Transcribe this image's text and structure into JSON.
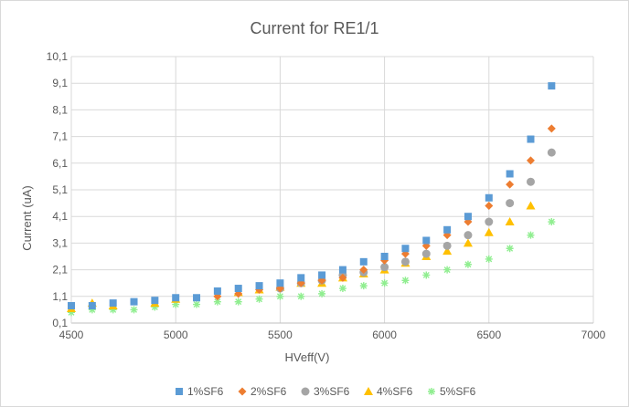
{
  "chart_data": {
    "type": "scatter",
    "title": "Current for RE1/1",
    "xlabel": "HVeff(V)",
    "ylabel": "Current (uA)",
    "xlim": [
      4500,
      7000
    ],
    "ylim": [
      0.1,
      10.1
    ],
    "x_ticks": [
      "4500",
      "5000",
      "5500",
      "6000",
      "6500",
      "7000"
    ],
    "y_ticks": [
      "0,1",
      "1,1",
      "2,1",
      "3,1",
      "4,1",
      "5,1",
      "6,1",
      "7,1",
      "8,1",
      "9,1",
      "10,1"
    ],
    "grid": true,
    "legend_position": "bottom",
    "series": [
      {
        "name": "1%SF6",
        "color": "#5b9bd5",
        "marker": "square",
        "x": [
          4500,
          4600,
          4700,
          4800,
          4900,
          5000,
          5100,
          5200,
          5300,
          5400,
          5500,
          5600,
          5700,
          5800,
          5900,
          6000,
          6100,
          6200,
          6300,
          6400,
          6500,
          6600,
          6700,
          6800
        ],
        "y": [
          0.75,
          0.75,
          0.85,
          0.9,
          0.95,
          1.05,
          1.05,
          1.3,
          1.4,
          1.5,
          1.6,
          1.8,
          1.9,
          2.1,
          2.4,
          2.6,
          2.9,
          3.2,
          3.6,
          4.1,
          4.8,
          5.7,
          7.0,
          9.0
        ]
      },
      {
        "name": "2%SF6",
        "color": "#ed7d31",
        "marker": "diamond",
        "x": [
          5200,
          5300,
          5400,
          5500,
          5600,
          5700,
          5800,
          5900,
          6000,
          6100,
          6200,
          6300,
          6400,
          6500,
          6600,
          6700,
          6800
        ],
        "y": [
          1.1,
          1.2,
          1.35,
          1.4,
          1.6,
          1.7,
          1.8,
          2.1,
          2.45,
          2.7,
          3.0,
          3.4,
          3.9,
          4.5,
          5.3,
          6.2,
          7.4
        ]
      },
      {
        "name": "3%SF6",
        "color": "#a5a5a5",
        "marker": "circle",
        "x": [
          5500,
          5600,
          5700,
          5800,
          5900,
          6000,
          6100,
          6200,
          6300,
          6400,
          6500,
          6600,
          6700,
          6800
        ],
        "y": [
          1.4,
          1.6,
          1.7,
          1.9,
          2.0,
          2.2,
          2.4,
          2.7,
          3.0,
          3.4,
          3.9,
          4.6,
          5.4,
          6.5
        ]
      },
      {
        "name": "4%SF6",
        "color": "#ffc000",
        "marker": "triangle",
        "x": [
          4500,
          4600,
          4700,
          4900,
          5000,
          5300,
          5400,
          5500,
          5600,
          5700,
          5800,
          5900,
          6000,
          6100,
          6200,
          6300,
          6400,
          6500,
          6600,
          6700
        ],
        "y": [
          0.65,
          0.85,
          0.75,
          0.85,
          1.0,
          1.25,
          1.35,
          1.45,
          1.6,
          1.6,
          1.8,
          1.95,
          2.1,
          2.35,
          2.6,
          2.8,
          3.1,
          3.5,
          3.9,
          4.5
        ]
      },
      {
        "name": "5%SF6",
        "color": "#90ee90",
        "marker": "star",
        "x": [
          4500,
          4600,
          4700,
          4800,
          4900,
          5000,
          5100,
          5200,
          5300,
          5400,
          5500,
          5600,
          5700,
          5800,
          5900,
          6000,
          6100,
          6200,
          6300,
          6400,
          6500,
          6600,
          6700,
          6800
        ],
        "y": [
          0.5,
          0.6,
          0.6,
          0.6,
          0.7,
          0.8,
          0.8,
          0.9,
          0.9,
          1.0,
          1.1,
          1.1,
          1.2,
          1.4,
          1.5,
          1.6,
          1.7,
          1.9,
          2.1,
          2.3,
          2.5,
          2.9,
          3.4,
          3.9
        ]
      }
    ]
  }
}
